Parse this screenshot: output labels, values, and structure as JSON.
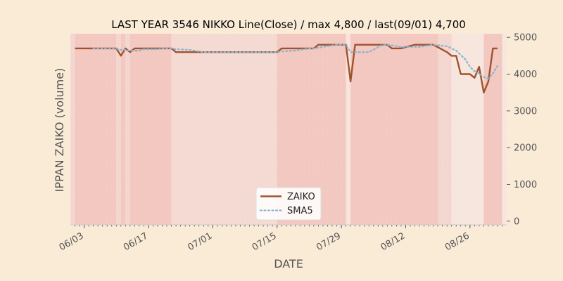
{
  "chart_data": {
    "type": "line",
    "title": "LAST YEAR 3546 NIKKO Line(Close) / max 4,800 / last(09/01) 4,700",
    "xlabel": "DATE",
    "ylabel": "IPPAN ZAIKO (volume)",
    "ylim": [
      -100,
      5100
    ],
    "yticks": [
      0,
      1000,
      2000,
      3000,
      4000,
      5000
    ],
    "ytick_labels": [
      "0",
      "1000",
      "2000",
      "3000",
      "4000",
      "5000"
    ],
    "xlim": [
      "2023-05-31",
      "2023-09-03"
    ],
    "xticks": [
      "2023-06-03",
      "2023-06-17",
      "2023-07-01",
      "2023-07-15",
      "2023-07-29",
      "2023-08-12",
      "2023-08-26"
    ],
    "xtick_labels": [
      "06/03",
      "06/17",
      "07/01",
      "07/15",
      "07/29",
      "08/12",
      "08/26"
    ],
    "legend_position": "lower-center",
    "grid": false,
    "series": [
      {
        "name": "ZAIKO",
        "color": "#a0522d",
        "style": "solid",
        "points": [
          [
            "2023-06-01",
            4700
          ],
          [
            "2023-06-02",
            4700
          ],
          [
            "2023-06-05",
            4700
          ],
          [
            "2023-06-06",
            4700
          ],
          [
            "2023-06-07",
            4700
          ],
          [
            "2023-06-08",
            4700
          ],
          [
            "2023-06-09",
            4700
          ],
          [
            "2023-06-10",
            4700
          ],
          [
            "2023-06-11",
            4500
          ],
          [
            "2023-06-12",
            4700
          ],
          [
            "2023-06-13",
            4600
          ],
          [
            "2023-06-14",
            4700
          ],
          [
            "2023-06-15",
            4700
          ],
          [
            "2023-06-16",
            4700
          ],
          [
            "2023-06-19",
            4700
          ],
          [
            "2023-06-20",
            4700
          ],
          [
            "2023-06-21",
            4700
          ],
          [
            "2023-06-22",
            4700
          ],
          [
            "2023-06-23",
            4600
          ],
          [
            "2023-06-26",
            4600
          ],
          [
            "2023-06-27",
            4600
          ],
          [
            "2023-06-28",
            4600
          ],
          [
            "2023-06-29",
            4600
          ],
          [
            "2023-06-30",
            4600
          ],
          [
            "2023-07-03",
            4600
          ],
          [
            "2023-07-04",
            4600
          ],
          [
            "2023-07-05",
            4600
          ],
          [
            "2023-07-06",
            4600
          ],
          [
            "2023-07-07",
            4600
          ],
          [
            "2023-07-10",
            4600
          ],
          [
            "2023-07-11",
            4600
          ],
          [
            "2023-07-12",
            4600
          ],
          [
            "2023-07-13",
            4600
          ],
          [
            "2023-07-14",
            4600
          ],
          [
            "2023-07-15",
            4600
          ],
          [
            "2023-07-16",
            4700
          ],
          [
            "2023-07-19",
            4700
          ],
          [
            "2023-07-20",
            4700
          ],
          [
            "2023-07-21",
            4700
          ],
          [
            "2023-07-22",
            4700
          ],
          [
            "2023-07-23",
            4700
          ],
          [
            "2023-07-24",
            4800
          ],
          [
            "2023-07-25",
            4800
          ],
          [
            "2023-07-26",
            4800
          ],
          [
            "2023-07-27",
            4800
          ],
          [
            "2023-07-28",
            4800
          ],
          [
            "2023-07-29",
            4800
          ],
          [
            "2023-07-30",
            4800
          ],
          [
            "2023-07-31",
            3800
          ],
          [
            "2023-08-01",
            4800
          ],
          [
            "2023-08-02",
            4800
          ],
          [
            "2023-08-03",
            4800
          ],
          [
            "2023-08-04",
            4800
          ],
          [
            "2023-08-07",
            4800
          ],
          [
            "2023-08-08",
            4800
          ],
          [
            "2023-08-09",
            4700
          ],
          [
            "2023-08-10",
            4700
          ],
          [
            "2023-08-11",
            4700
          ],
          [
            "2023-08-14",
            4800
          ],
          [
            "2023-08-15",
            4800
          ],
          [
            "2023-08-16",
            4800
          ],
          [
            "2023-08-17",
            4800
          ],
          [
            "2023-08-18",
            4800
          ],
          [
            "2023-08-21",
            4600
          ],
          [
            "2023-08-22",
            4500
          ],
          [
            "2023-08-23",
            4500
          ],
          [
            "2023-08-24",
            4000
          ],
          [
            "2023-08-25",
            4000
          ],
          [
            "2023-08-26",
            4000
          ],
          [
            "2023-08-27",
            3900
          ],
          [
            "2023-08-28",
            4200
          ],
          [
            "2023-08-29",
            3500
          ],
          [
            "2023-08-30",
            3800
          ],
          [
            "2023-08-31",
            4700
          ],
          [
            "2023-09-01",
            4700
          ]
        ]
      },
      {
        "name": "SMA5",
        "color": "#8ab4cf",
        "style": "dotted",
        "points": [
          [
            "2023-06-05",
            4700
          ],
          [
            "2023-06-06",
            4700
          ],
          [
            "2023-06-07",
            4700
          ],
          [
            "2023-06-08",
            4700
          ],
          [
            "2023-06-09",
            4700
          ],
          [
            "2023-06-10",
            4700
          ],
          [
            "2023-06-11",
            4660
          ],
          [
            "2023-06-12",
            4660
          ],
          [
            "2023-06-13",
            4640
          ],
          [
            "2023-06-14",
            4640
          ],
          [
            "2023-06-15",
            4640
          ],
          [
            "2023-06-16",
            4680
          ],
          [
            "2023-06-19",
            4680
          ],
          [
            "2023-06-20",
            4700
          ],
          [
            "2023-06-21",
            4700
          ],
          [
            "2023-06-22",
            4700
          ],
          [
            "2023-06-23",
            4680
          ],
          [
            "2023-06-26",
            4660
          ],
          [
            "2023-06-27",
            4640
          ],
          [
            "2023-06-28",
            4620
          ],
          [
            "2023-06-29",
            4600
          ],
          [
            "2023-06-30",
            4600
          ],
          [
            "2023-07-03",
            4600
          ],
          [
            "2023-07-04",
            4600
          ],
          [
            "2023-07-05",
            4600
          ],
          [
            "2023-07-06",
            4600
          ],
          [
            "2023-07-07",
            4600
          ],
          [
            "2023-07-10",
            4600
          ],
          [
            "2023-07-11",
            4600
          ],
          [
            "2023-07-12",
            4600
          ],
          [
            "2023-07-13",
            4600
          ],
          [
            "2023-07-14",
            4600
          ],
          [
            "2023-07-15",
            4600
          ],
          [
            "2023-07-16",
            4620
          ],
          [
            "2023-07-19",
            4640
          ],
          [
            "2023-07-20",
            4660
          ],
          [
            "2023-07-21",
            4680
          ],
          [
            "2023-07-22",
            4700
          ],
          [
            "2023-07-23",
            4700
          ],
          [
            "2023-07-24",
            4720
          ],
          [
            "2023-07-25",
            4740
          ],
          [
            "2023-07-26",
            4760
          ],
          [
            "2023-07-27",
            4780
          ],
          [
            "2023-07-28",
            4800
          ],
          [
            "2023-07-29",
            4800
          ],
          [
            "2023-07-30",
            4800
          ],
          [
            "2023-07-31",
            4600
          ],
          [
            "2023-08-01",
            4600
          ],
          [
            "2023-08-02",
            4600
          ],
          [
            "2023-08-03",
            4600
          ],
          [
            "2023-08-04",
            4600
          ],
          [
            "2023-08-07",
            4800
          ],
          [
            "2023-08-08",
            4800
          ],
          [
            "2023-08-09",
            4780
          ],
          [
            "2023-08-10",
            4760
          ],
          [
            "2023-08-11",
            4740
          ],
          [
            "2023-08-14",
            4740
          ],
          [
            "2023-08-15",
            4740
          ],
          [
            "2023-08-16",
            4760
          ],
          [
            "2023-08-17",
            4780
          ],
          [
            "2023-08-18",
            4800
          ],
          [
            "2023-08-21",
            4760
          ],
          [
            "2023-08-22",
            4700
          ],
          [
            "2023-08-23",
            4640
          ],
          [
            "2023-08-24",
            4520
          ],
          [
            "2023-08-25",
            4400
          ],
          [
            "2023-08-26",
            4200
          ],
          [
            "2023-08-27",
            4080
          ],
          [
            "2023-08-28",
            4020
          ],
          [
            "2023-08-29",
            3920
          ],
          [
            "2023-08-30",
            3880
          ],
          [
            "2023-08-31",
            4020
          ],
          [
            "2023-09-01",
            4220
          ]
        ]
      }
    ],
    "shaded_spans": [
      {
        "from": "2023-05-31",
        "to": "2023-06-01",
        "color": "#f4d6d0"
      },
      {
        "from": "2023-06-01",
        "to": "2023-06-10",
        "color": "#f2c8c0"
      },
      {
        "from": "2023-06-10",
        "to": "2023-06-11",
        "color": "#f4d6d0"
      },
      {
        "from": "2023-06-11",
        "to": "2023-06-12",
        "color": "#f2c8c0"
      },
      {
        "from": "2023-06-12",
        "to": "2023-06-13",
        "color": "#f4d6d0"
      },
      {
        "from": "2023-06-13",
        "to": "2023-06-22",
        "color": "#f2c8c0"
      },
      {
        "from": "2023-06-22",
        "to": "2023-07-15",
        "color": "#f4dad3"
      },
      {
        "from": "2023-07-15",
        "to": "2023-07-30",
        "color": "#f2c8c0"
      },
      {
        "from": "2023-07-30",
        "to": "2023-07-31",
        "color": "#f7e4dc"
      },
      {
        "from": "2023-07-31",
        "to": "2023-08-19",
        "color": "#f2c8c0"
      },
      {
        "from": "2023-08-19",
        "to": "2023-08-22",
        "color": "#f4d6d0"
      },
      {
        "from": "2023-08-22",
        "to": "2023-08-29",
        "color": "#f7e6dd"
      },
      {
        "from": "2023-08-29",
        "to": "2023-09-02",
        "color": "#f2c8c0"
      },
      {
        "from": "2023-09-02",
        "to": "2023-09-03",
        "color": "#f7e6dd"
      }
    ]
  },
  "colors": {
    "figure_background": "#faebd7",
    "axes_background": "#f4d6d0",
    "axis_text": "#555555"
  }
}
